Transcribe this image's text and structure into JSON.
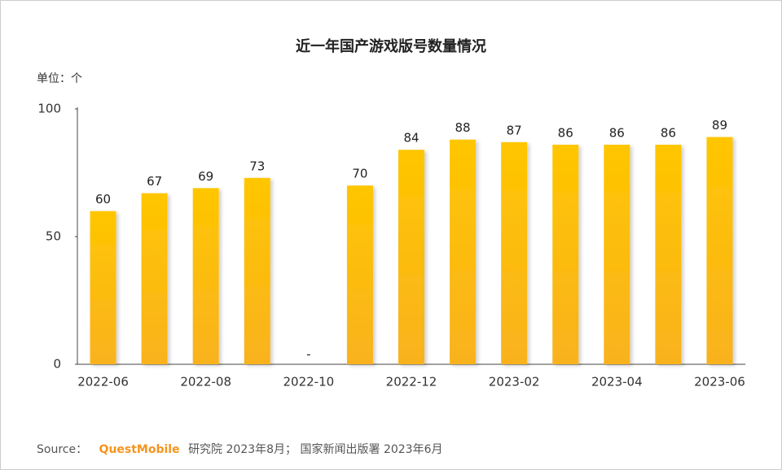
{
  "chart_data": {
    "type": "bar",
    "title": "近一年国产游戏版号数量情况",
    "unit_label": "单位：个",
    "categories": [
      "2022-06",
      null,
      "2022-08",
      null,
      "2022-10",
      null,
      "2022-12",
      null,
      "2023-02",
      null,
      "2023-04",
      null,
      "2023-06"
    ],
    "values": [
      60,
      67,
      69,
      73,
      null,
      70,
      84,
      88,
      87,
      86,
      86,
      86,
      89
    ],
    "value_labels": [
      "60",
      "67",
      "69",
      "73",
      "-",
      "70",
      "84",
      "88",
      "87",
      "86",
      "86",
      "86",
      "89"
    ],
    "color": "#ffc600",
    "ylim": [
      0,
      100
    ],
    "yticks": [
      0,
      50,
      100
    ],
    "grid": false,
    "source": {
      "prefix": "Source：",
      "brand": "QuestMobile",
      "text": "研究院 2023年8月； 国家新闻出版署 2023年6月"
    }
  }
}
